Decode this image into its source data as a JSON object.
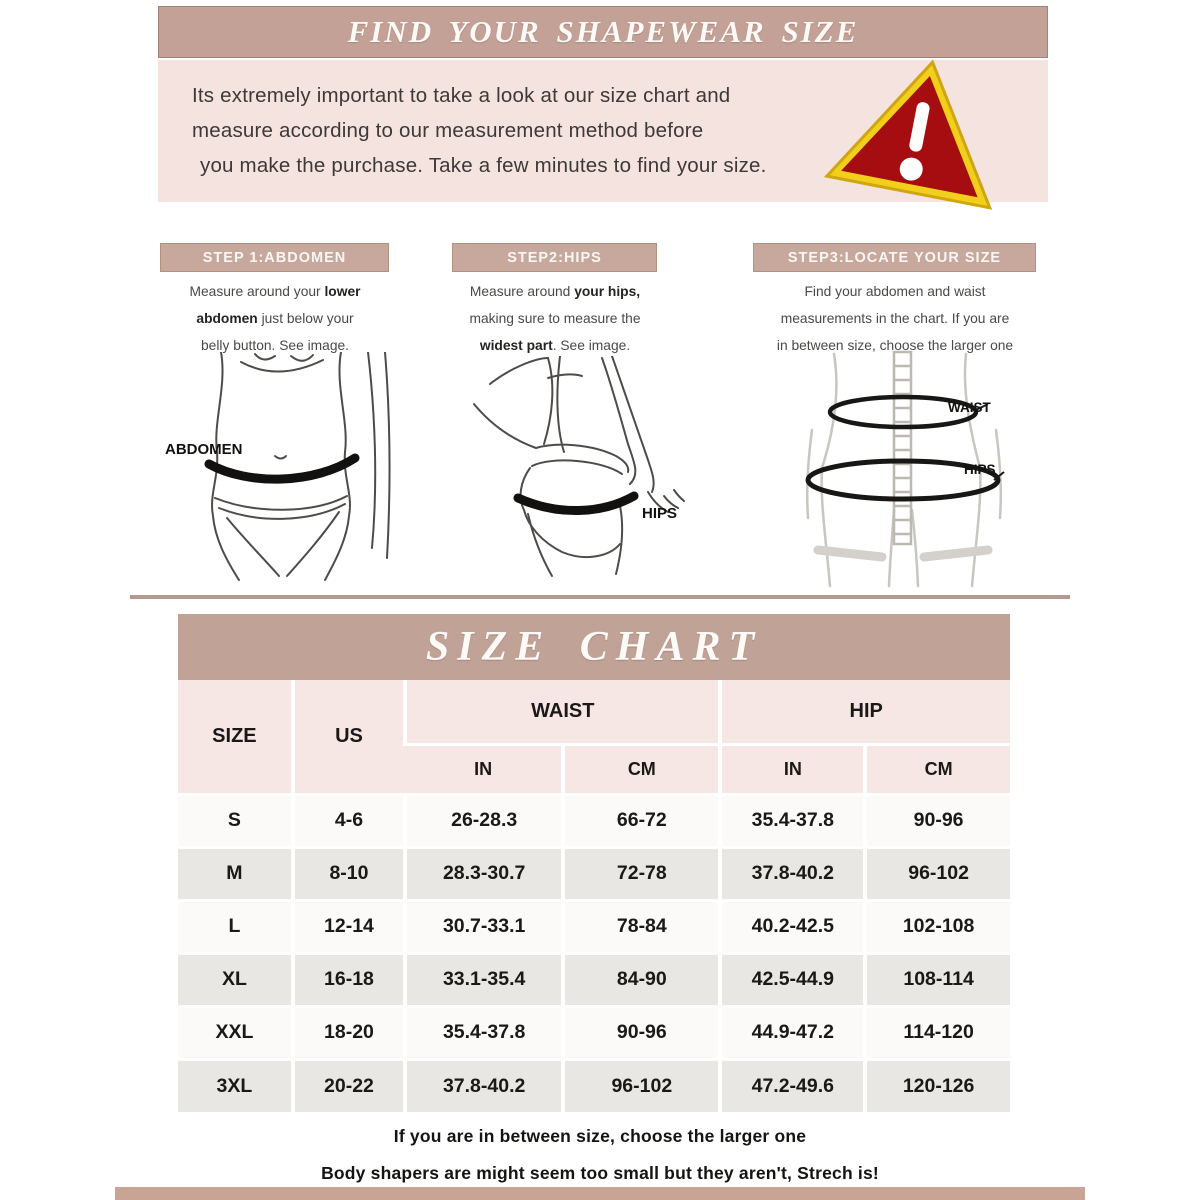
{
  "header": {
    "title": "FIND YOUR SHAPEWEAR SIZE"
  },
  "intro": {
    "lines": [
      "Its extremely important to take a look at our size chart and",
      "measure according to our measurement method before",
      "you make the purchase. Take a few minutes to find your size."
    ]
  },
  "colors": {
    "mauve": "#c3a196",
    "panel_pink": "#f4e3df",
    "table_header_pink": "#f7e7e4",
    "row_light": "#fbfaf8",
    "row_gray": "#e9e7e3",
    "warning_red": "#a50d10",
    "warning_yellow": "#f2cf1b"
  },
  "steps": [
    {
      "label": "STEP 1:ABDOMEN",
      "lines": [
        [
          [
            "Measure around your ",
            0
          ],
          [
            "lower",
            1
          ]
        ],
        [
          [
            "abdomen",
            1
          ],
          [
            " just below your",
            0
          ]
        ],
        [
          [
            "belly button. See image.",
            0
          ]
        ]
      ]
    },
    {
      "label": "STEP2:HIPS",
      "lines": [
        [
          [
            "Measure around ",
            0
          ],
          [
            "your hips,",
            1
          ]
        ],
        [
          [
            "making sure to measure the",
            0
          ]
        ],
        [
          [
            "widest part",
            1
          ],
          [
            ". See image.",
            0
          ]
        ]
      ]
    },
    {
      "label": "STEP3:LOCATE YOUR SIZE",
      "lines": [
        [
          [
            "Find your abdomen and waist",
            0
          ]
        ],
        [
          [
            "measurements in the chart. If you are",
            0
          ]
        ],
        [
          [
            "in between size, choose the larger one",
            0
          ]
        ]
      ]
    }
  ],
  "figures": {
    "abdomen_label": "ABDOMEN",
    "hips_side_label": "HIPS",
    "waist_label": "WAIST",
    "hips_front_label": "HIPS"
  },
  "size_chart": {
    "title": "SIZE CHART",
    "col_headers": {
      "size": "SIZE",
      "us": "US",
      "waist": "WAIST",
      "hip": "HIP",
      "in": "IN",
      "cm": "CM"
    },
    "notes": [
      "If you are in between size, choose the larger one",
      "Body shapers are might seem too small but they aren't, Strech is!"
    ]
  },
  "chart_data": {
    "type": "table",
    "columns": [
      "SIZE",
      "US",
      "WAIST IN",
      "WAIST CM",
      "HIP IN",
      "HIP CM"
    ],
    "rows": [
      [
        "S",
        "4-6",
        "26-28.3",
        "66-72",
        "35.4-37.8",
        "90-96"
      ],
      [
        "M",
        "8-10",
        "28.3-30.7",
        "72-78",
        "37.8-40.2",
        "96-102"
      ],
      [
        "L",
        "12-14",
        "30.7-33.1",
        "78-84",
        "40.2-42.5",
        "102-108"
      ],
      [
        "XL",
        "16-18",
        "33.1-35.4",
        "84-90",
        "42.5-44.9",
        "108-114"
      ],
      [
        "XXL",
        "18-20",
        "35.4-37.8",
        "90-96",
        "44.9-47.2",
        "114-120"
      ],
      [
        "3XL",
        "20-22",
        "37.8-40.2",
        "96-102",
        "47.2-49.6",
        "120-126"
      ]
    ]
  }
}
